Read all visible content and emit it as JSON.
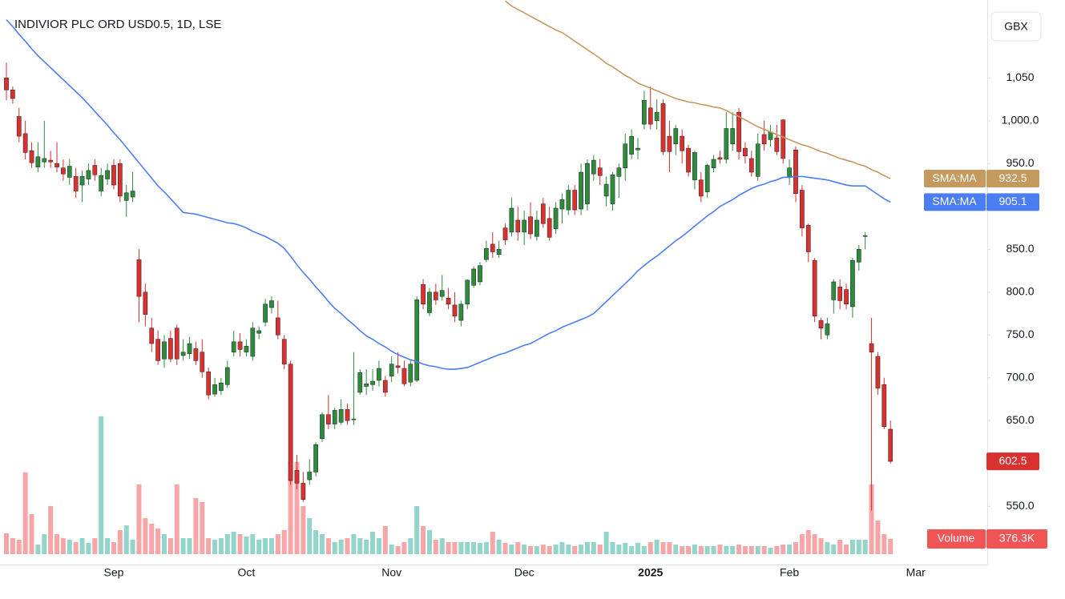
{
  "chart_data": {
    "type": "candlestick",
    "title": "INDIVIOR PLC ORD USD0.5, 1D, LSE",
    "currency": "GBX",
    "categories": [
      null,
      null,
      null,
      null,
      null,
      null,
      null,
      null,
      null,
      null,
      null,
      null,
      null,
      null,
      null,
      null,
      null,
      "Sep",
      null,
      null,
      null,
      null,
      null,
      null,
      null,
      null,
      null,
      null,
      null,
      null,
      null,
      null,
      null,
      null,
      null,
      null,
      null,
      null,
      "Oct",
      null,
      null,
      null,
      null,
      null,
      null,
      null,
      null,
      null,
      null,
      null,
      null,
      null,
      null,
      null,
      null,
      null,
      null,
      null,
      null,
      null,
      null,
      "Nov",
      null,
      null,
      null,
      null,
      null,
      null,
      null,
      null,
      null,
      null,
      null,
      null,
      null,
      null,
      null,
      null,
      null,
      null,
      null,
      null,
      "Dec",
      null,
      null,
      null,
      null,
      null,
      null,
      null,
      null,
      null,
      null,
      null,
      null,
      null,
      null,
      null,
      null,
      null,
      null,
      null,
      "2025",
      null,
      null,
      null,
      null,
      null,
      null,
      null,
      null,
      null,
      null,
      null,
      null,
      null,
      null,
      null,
      null,
      null,
      null,
      null,
      null,
      null,
      "Feb",
      null,
      null,
      null,
      null,
      null,
      null,
      null,
      null,
      null,
      null,
      null,
      null,
      null,
      null,
      null,
      null,
      null,
      null,
      null,
      "Mar"
    ],
    "open": [
      1050,
      1036,
      1005,
      985,
      965,
      946,
      952,
      954,
      950,
      945,
      934,
      935,
      925,
      932,
      948,
      918,
      932,
      948,
      950,
      907,
      911,
      838,
      800,
      758,
      745,
      722,
      746,
      758,
      726,
      728,
      734,
      730,
      707,
      681,
      685,
      692,
      730,
      742,
      730,
      725,
      752,
      765,
      782,
      770,
      745,
      716,
      592,
      577,
      581,
      590,
      629,
      657,
      646,
      648,
      663,
      651,
      683,
      690,
      692,
      697,
      697,
      702,
      714,
      711,
      695,
      697,
      809,
      776,
      800,
      795,
      793,
      785,
      767,
      786,
      808,
      812,
      838,
      856,
      844,
      875,
      870,
      884,
      870,
      888,
      865,
      903,
      886,
      874,
      897,
      896,
      919,
      897,
      903,
      938,
      945,
      912,
      903,
      935,
      945,
      961,
      966,
      996,
      1015,
      1000,
      1020,
      982,
      973,
      982,
      968,
      931,
      931,
      917,
      945,
      957,
      955,
      973,
      1010,
      968,
      956,
      935,
      984,
      978,
      980,
      1001,
      934,
      966,
      919,
      878,
      837,
      767,
      750,
      791,
      806,
      803,
      783,
      835,
      865,
      740,
      725,
      692,
      640,
      null,
      null,
      null,
      null
    ],
    "high": [
      1068,
      1040,
      1015,
      1000,
      975,
      975,
      1000,
      965,
      975,
      955,
      955,
      945,
      942,
      950,
      955,
      945,
      950,
      955,
      955,
      925,
      940,
      850,
      810,
      770,
      755,
      750,
      755,
      762,
      745,
      748,
      742,
      745,
      712,
      700,
      700,
      720,
      755,
      752,
      745,
      765,
      760,
      792,
      795,
      790,
      750,
      720,
      610,
      590,
      605,
      625,
      660,
      680,
      665,
      675,
      670,
      730,
      710,
      710,
      710,
      720,
      702,
      725,
      730,
      720,
      720,
      795,
      815,
      805,
      810,
      820,
      805,
      800,
      790,
      815,
      830,
      835,
      860,
      870,
      860,
      880,
      910,
      900,
      895,
      905,
      895,
      910,
      900,
      905,
      915,
      925,
      925,
      950,
      955,
      960,
      955,
      935,
      940,
      950,
      985,
      990,
      980,
      1035,
      1040,
      1025,
      1025,
      1000,
      995,
      990,
      972,
      965,
      940,
      950,
      960,
      965,
      1010,
      1010,
      1015,
      975,
      965,
      985,
      1000,
      995,
      995,
      1002,
      955,
      970,
      925,
      880,
      840,
      770,
      770,
      815,
      815,
      810,
      840,
      855,
      870,
      770,
      730,
      700,
      650,
      null,
      null,
      null,
      null
    ],
    "low": [
      1024,
      1020,
      975,
      955,
      945,
      940,
      945,
      945,
      940,
      930,
      925,
      910,
      905,
      925,
      930,
      912,
      925,
      920,
      905,
      888,
      905,
      765,
      760,
      730,
      715,
      712,
      718,
      715,
      720,
      722,
      715,
      700,
      675,
      678,
      680,
      688,
      725,
      725,
      725,
      720,
      745,
      760,
      775,
      745,
      710,
      575,
      570,
      555,
      575,
      585,
      625,
      640,
      640,
      645,
      645,
      645,
      680,
      680,
      685,
      690,
      678,
      695,
      705,
      690,
      690,
      695,
      780,
      772,
      785,
      790,
      780,
      765,
      760,
      780,
      805,
      808,
      835,
      840,
      840,
      855,
      865,
      860,
      855,
      862,
      860,
      875,
      860,
      868,
      880,
      890,
      890,
      890,
      895,
      930,
      925,
      900,
      895,
      910,
      930,
      955,
      955,
      990,
      990,
      990,
      960,
      940,
      960,
      950,
      935,
      920,
      905,
      910,
      940,
      950,
      950,
      965,
      955,
      950,
      935,
      930,
      965,
      970,
      960,
      950,
      925,
      905,
      865,
      835,
      765,
      745,
      745,
      775,
      780,
      780,
      770,
      825,
      850,
      545,
      680,
      640,
      600,
      null,
      null,
      null,
      null
    ],
    "close": [
      1036,
      1026,
      982,
      963,
      951,
      958,
      956,
      952,
      946,
      938,
      947,
      918,
      935,
      942,
      937,
      936,
      942,
      925,
      912,
      916,
      918,
      795,
      774,
      740,
      720,
      742,
      722,
      722,
      730,
      740,
      720,
      707,
      680,
      692,
      694,
      712,
      742,
      733,
      737,
      758,
      755,
      786,
      790,
      750,
      716,
      580,
      577,
      558,
      590,
      622,
      657,
      646,
      662,
      663,
      650,
      652,
      706,
      693,
      696,
      711,
      683,
      716,
      712,
      693,
      716,
      791,
      786,
      800,
      791,
      802,
      786,
      772,
      786,
      814,
      827,
      831,
      851,
      847,
      850,
      861,
      898,
      870,
      884,
      868,
      884,
      880,
      864,
      898,
      908,
      919,
      896,
      940,
      950,
      954,
      936,
      926,
      937,
      945,
      973,
      982,
      968,
      1024,
      996,
      1010,
      964,
      964,
      991,
      965,
      940,
      963,
      912,
      948,
      955,
      955,
      991,
      991,
      964,
      959,
      940,
      973,
      973,
      987,
      964,
      956,
      945,
      915,
      875,
      847,
      772,
      758,
      763,
      812,
      790,
      786,
      837,
      850,
      866,
      730,
      688,
      643,
      602.5,
      null,
      null,
      null,
      null
    ],
    "up_color": "#2e8b3e",
    "down_color": "#d93030",
    "ylim": [
      482,
      1141
    ],
    "yticks": [
      {
        "value": 1050,
        "label": "1,050"
      },
      {
        "value": 1000,
        "label": "1,000.0"
      },
      {
        "value": 950,
        "label": "950.0"
      },
      {
        "value": 850,
        "label": "850.0"
      },
      {
        "value": 800,
        "label": "800.0"
      },
      {
        "value": 750,
        "label": "750.0"
      },
      {
        "value": 700,
        "label": "700.0"
      },
      {
        "value": 650,
        "label": "650.0"
      },
      {
        "value": 550,
        "label": "550.0"
      }
    ],
    "volume": {
      "name": "Volume",
      "up_color": "#93d5cb",
      "down_color": "#f6a6a6",
      "ylim": [
        0,
        3500000
      ],
      "last_value_label": "376.3K",
      "values": [
        514800,
        396000,
        356400,
        2019600,
        990000,
        237600,
        495000,
        1188000,
        495000,
        396000,
        356400,
        297000,
        396000,
        277200,
        396000,
        3405600,
        396000,
        297000,
        594000,
        712800,
        356400,
        1722600,
        891000,
        752400,
        633600,
        495000,
        396000,
        1722600,
        396000,
        396000,
        1386000,
        1287000,
        396000,
        356400,
        396000,
        495000,
        554400,
        495000,
        435600,
        495000,
        356400,
        396000,
        396000,
        495000,
        594000,
        2277000,
        2277000,
        1188000,
        891000,
        594000,
        495000,
        396000,
        297000,
        356400,
        396000,
        495000,
        396000,
        356400,
        554400,
        396000,
        693000,
        237600,
        198000,
        297000,
        396000,
        1188000,
        693000,
        594000,
        356400,
        396000,
        297000,
        297000,
        297000,
        297000,
        297000,
        277200,
        297000,
        554400,
        356400,
        277200,
        237600,
        297000,
        237600,
        198000,
        198000,
        237600,
        198000,
        237600,
        297000,
        237600,
        198000,
        237600,
        297000,
        297000,
        237600,
        554400,
        297000,
        237600,
        277200,
        198000,
        277200,
        198000,
        297000,
        356400,
        297000,
        297000,
        237600,
        198000,
        198000,
        237600,
        198000,
        198000,
        198000,
        237600,
        198000,
        198000,
        237600,
        198000,
        198000,
        198000,
        198000,
        158400,
        198000,
        237600,
        237600,
        297000,
        495000,
        594000,
        495000,
        396000,
        297000,
        237600,
        356400,
        237600,
        356400,
        356400,
        356400,
        1722600,
        831600,
        495000,
        376300,
        null,
        null,
        null,
        null
      ]
    },
    "series": [
      {
        "name": "SMA:MA",
        "color": "#c49a5e",
        "values": [
          null,
          null,
          null,
          null,
          null,
          null,
          null,
          null,
          null,
          null,
          null,
          null,
          null,
          null,
          null,
          null,
          null,
          null,
          null,
          null,
          null,
          null,
          null,
          null,
          null,
          null,
          null,
          null,
          null,
          null,
          null,
          null,
          null,
          null,
          null,
          null,
          null,
          null,
          null,
          null,
          null,
          null,
          null,
          null,
          null,
          null,
          null,
          null,
          null,
          null,
          null,
          null,
          null,
          null,
          null,
          null,
          null,
          null,
          null,
          null,
          null,
          null,
          null,
          null,
          null,
          null,
          null,
          null,
          null,
          null,
          null,
          null,
          null,
          null,
          null,
          null,
          null,
          null,
          null,
          1140,
          1134,
          1130,
          1126,
          1122,
          1118,
          1114,
          1110,
          1106,
          1103,
          1098,
          1093,
          1088,
          1083,
          1078,
          1073,
          1067,
          1063,
          1058,
          1053,
          1049,
          1044,
          1041,
          1038,
          1035,
          1032,
          1029,
          1026,
          1024,
          1022,
          1021,
          1019,
          1018,
          1016,
          1015,
          1012,
          1008,
          1005,
          1001,
          997,
          993,
          990,
          987,
          984,
          981,
          978,
          975,
          972,
          970,
          967,
          964,
          962,
          959,
          956,
          954,
          952,
          949,
          947,
          943,
          940,
          936,
          932.5,
          null,
          null,
          null,
          null
        ]
      },
      {
        "name": "SMA:MA",
        "color": "#4c7ef3",
        "values": [
          1118,
          1110,
          1101,
          1093,
          1084,
          1076,
          1069,
          1062,
          1055,
          1048,
          1041,
          1034,
          1027,
          1019,
          1011,
          1003,
          995,
          986,
          978,
          969,
          960,
          951,
          942,
          933,
          924,
          917,
          909,
          901,
          893,
          892,
          891,
          889,
          887,
          885,
          883,
          881,
          880,
          878,
          875,
          871,
          868,
          865,
          861,
          857,
          851,
          842,
          832,
          823,
          815,
          806,
          798,
          789,
          781,
          775,
          768,
          762,
          755,
          749,
          745,
          740,
          736,
          731,
          727,
          724,
          721,
          719,
          716,
          714,
          713,
          711,
          710,
          710,
          711,
          712,
          715,
          718,
          721,
          724,
          727,
          729,
          732,
          735,
          738,
          740,
          744,
          748,
          752,
          755,
          759,
          762,
          765,
          768,
          771,
          775,
          782,
          789,
          796,
          803,
          810,
          817,
          825,
          831,
          837,
          842,
          848,
          854,
          860,
          865,
          871,
          877,
          883,
          889,
          894,
          900,
          904,
          908,
          913,
          917,
          921,
          924,
          926,
          929,
          931,
          934,
          934,
          935,
          935,
          934,
          933,
          932,
          931,
          929,
          927,
          925,
          924,
          924,
          924,
          919,
          914,
          909,
          905.1,
          null,
          null,
          null,
          null
        ]
      }
    ]
  }
}
